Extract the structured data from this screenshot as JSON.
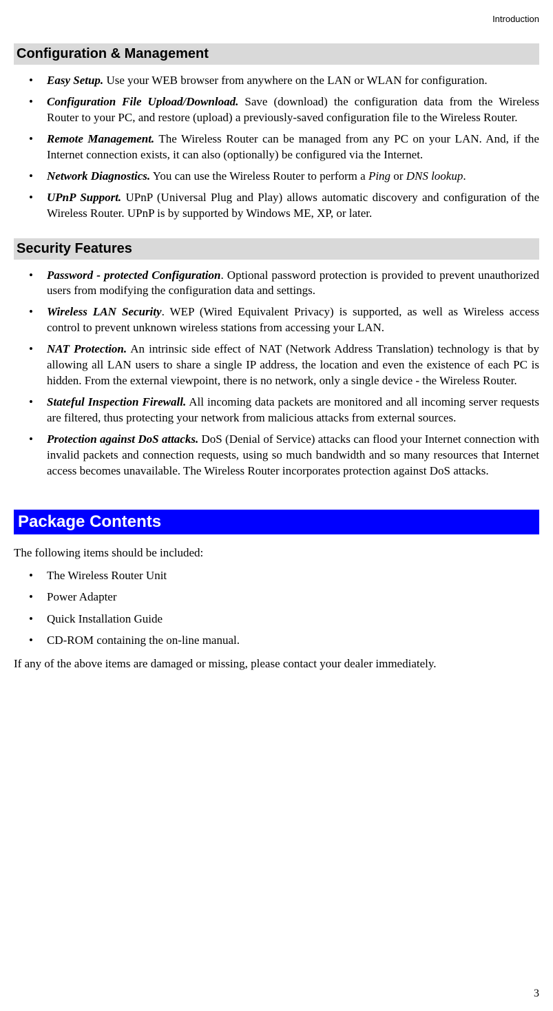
{
  "header": {
    "running": "Introduction"
  },
  "page_number": "3",
  "colors": {
    "gray_heading_bg": "#d9d9d9",
    "blue_heading_bg": "#0000ff",
    "blue_heading_fg": "#ffffff",
    "body_text": "#000000",
    "page_bg": "#ffffff"
  },
  "typography": {
    "body_font": "Times New Roman",
    "heading_font": "Arial",
    "body_size_pt": 12,
    "gray_heading_size_pt": 15,
    "blue_heading_size_pt": 18
  },
  "sections": {
    "config_mgmt": {
      "title": "Configuration & Management",
      "items": [
        {
          "title": "Easy Setup.",
          "body": "  Use your WEB browser from anywhere on the LAN or WLAN for configuration."
        },
        {
          "title": "Configuration File Upload/Download.",
          "body": "  Save (download) the configuration data from the Wireless Router to your PC, and restore (upload) a previously-saved configuration file to the Wireless Router."
        },
        {
          "title": "Remote Management.",
          "body": "  The Wireless Router can be managed from any PC on your LAN. And, if the Internet connection exists, it can also (optionally) be configured via the Internet."
        },
        {
          "title": "Network Diagnostics.",
          "body_pre": "  You can use the Wireless Router to perform a ",
          "italic1": "Ping",
          "body_mid": " or ",
          "italic2": "DNS lookup",
          "body_post": "."
        },
        {
          "title": "UPnP Support.",
          "body": "  UPnP (Universal Plug and Play) allows automatic discovery and configuration of the Wireless Router. UPnP is by supported by Windows ME, XP, or later."
        }
      ]
    },
    "security": {
      "title": "Security Features",
      "items": [
        {
          "title": "Password - protected Configuration",
          "body": ".  Optional password protection is provided to prevent unauthorized users from modifying the configuration data and settings."
        },
        {
          "title": "Wireless LAN Security",
          "body": ".  WEP (Wired Equivalent Privacy) is supported, as well as Wireless access control to prevent unknown wireless stations from accessing your LAN."
        },
        {
          "title": "NAT Protection.",
          "body": "  An intrinsic side effect of NAT (Network Address Translation) technology is that by allowing all LAN users to share a single IP address, the location and even the existence of each PC is hidden. From the external viewpoint, there is no network, only a single device - the Wireless Router."
        },
        {
          "title": "Stateful Inspection Firewall.",
          "body": "  All incoming data packets are monitored and all incoming server requests are filtered, thus protecting your network from malicious attacks from external sources."
        },
        {
          "title": "Protection against DoS attacks.",
          "body": "  DoS (Denial of Service) attacks can flood your Internet connection with invalid packets and connection requests, using so much bandwidth and so many resources that Internet access becomes unavailable. The Wireless Router incorporates protection against DoS attacks."
        }
      ]
    },
    "package": {
      "title": "Package Contents",
      "intro": "The following items should be included:",
      "items": [
        "The Wireless Router Unit",
        "Power Adapter",
        "Quick Installation Guide",
        "CD-ROM containing the on-line manual."
      ],
      "outro": "If any of the above items are damaged or missing, please contact your dealer immediately."
    }
  }
}
